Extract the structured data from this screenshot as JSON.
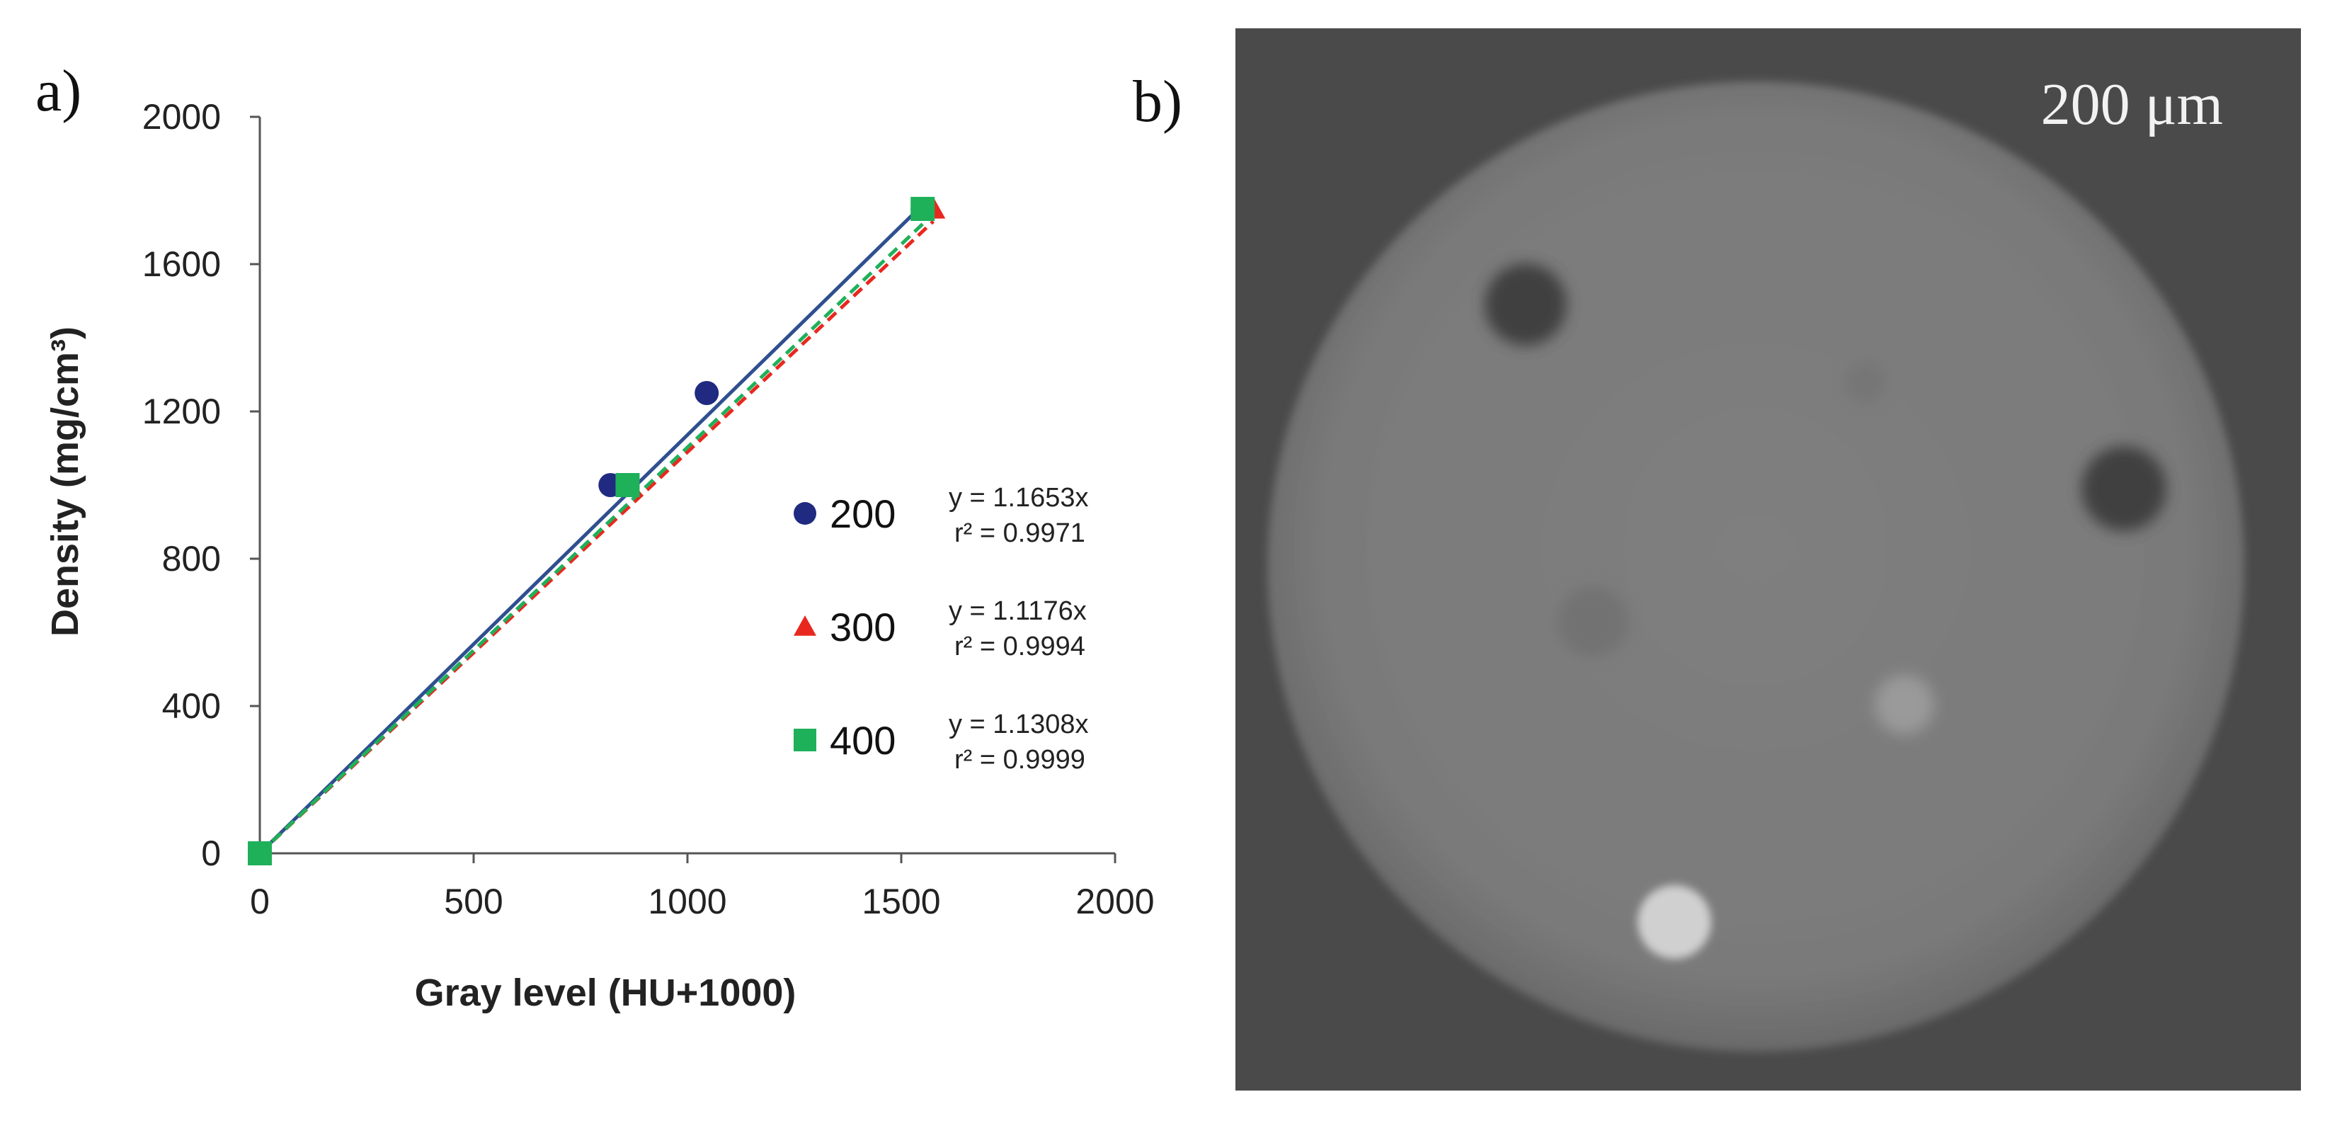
{
  "panel_a_label": "a)",
  "panel_b_label": "b)",
  "chart_data": {
    "type": "scatter",
    "title": "",
    "xlabel": "Gray level (HU+1000)",
    "ylabel": "Density (mg/cm³)",
    "xlim": [
      0,
      2000
    ],
    "ylim": [
      0,
      2000
    ],
    "xticks": [
      0,
      500,
      1000,
      1500,
      2000
    ],
    "yticks": [
      0,
      400,
      800,
      1200,
      1600,
      2000
    ],
    "xtick_labels": [
      "0",
      "500",
      "1000",
      "1500",
      "2000"
    ],
    "ytick_labels": [
      "0",
      "400",
      "800",
      "1200",
      "1600",
      "2000"
    ],
    "legend_position": "right",
    "series": [
      {
        "name": "200",
        "marker": "circle",
        "color": "#1f2a80",
        "line_color": "#2f4f8f",
        "line_style": "solid",
        "slope": 1.1653,
        "equation": "y = 1.1653x",
        "r2": "r² = 0.9971",
        "points": [
          [
            0,
            0
          ],
          [
            820,
            1000
          ],
          [
            1045,
            1250
          ],
          [
            1550,
            1750
          ]
        ]
      },
      {
        "name": "300",
        "marker": "triangle",
        "color": "#e8281f",
        "line_color": "#e8281f",
        "line_style": "dashed",
        "slope": 1.1176,
        "equation": "y = 1.1176x",
        "r2": "r² = 0.9994",
        "points": [
          [
            0,
            0
          ],
          [
            865,
            1000
          ],
          [
            1575,
            1750
          ]
        ]
      },
      {
        "name": "400",
        "marker": "square",
        "color": "#1fb05a",
        "line_color": "#1fb05a",
        "line_style": "dashed",
        "slope": 1.1308,
        "equation": "y = 1.1308x",
        "r2": "r² = 0.9999",
        "points": [
          [
            0,
            0
          ],
          [
            860,
            1000
          ],
          [
            1550,
            1750
          ]
        ]
      }
    ]
  },
  "ct_image": {
    "scale_label": "200 μm",
    "background_color": "#4a4a4a",
    "phantom_color": "#7b7b7b",
    "inserts": [
      {
        "name": "dark-insert-upper-left",
        "tone": "#3f3f3f"
      },
      {
        "name": "dark-insert-right",
        "tone": "#404040"
      },
      {
        "name": "faint-insert-center-top",
        "tone": "#767676"
      },
      {
        "name": "faint-insert-center-left",
        "tone": "#727272"
      },
      {
        "name": "light-insert-center-right",
        "tone": "#9a9a9a"
      },
      {
        "name": "bright-insert-bottom",
        "tone": "#d0d0d0"
      }
    ]
  }
}
